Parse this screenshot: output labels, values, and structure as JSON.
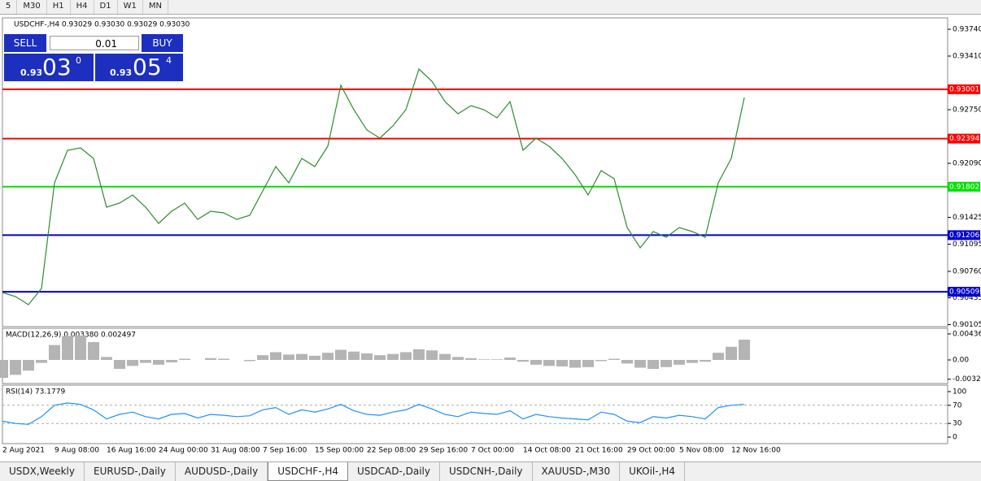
{
  "toolbar": [
    "5",
    "M30",
    "H1",
    "H4",
    "D1",
    "W1",
    "MN"
  ],
  "tabs": [
    "USDX,Weekly",
    "EURUSD-,Daily",
    "AUDUSD-,Daily",
    "USDCHF-,H4",
    "USDCAD-,Daily",
    "USDCNH-,Daily",
    "XAUUSD-,M30",
    "UKOil-,H4"
  ],
  "active_tab": "USDCHF-,H4",
  "trade_panel": {
    "sell": "SELL",
    "buy": "BUY",
    "lot": "0.01",
    "sell_price": {
      "prefix": "0.93",
      "big": "03",
      "point": "0"
    },
    "buy_price": {
      "prefix": "0.93",
      "big": "05",
      "point": "4"
    }
  },
  "chart_data": [
    {
      "type": "line",
      "title": "USDCHF-,H4  0.93029 0.93030 0.93029 0.93030",
      "color": "#2e8b2e",
      "values": [
        0.905,
        0.9045,
        0.9035,
        0.9055,
        0.9185,
        0.9225,
        0.9228,
        0.9215,
        0.9155,
        0.916,
        0.917,
        0.9155,
        0.9135,
        0.915,
        0.916,
        0.914,
        0.915,
        0.9148,
        0.914,
        0.9145,
        0.9175,
        0.9205,
        0.9185,
        0.9215,
        0.9205,
        0.923,
        0.9305,
        0.9275,
        0.925,
        0.924,
        0.9255,
        0.9275,
        0.9325,
        0.931,
        0.9285,
        0.927,
        0.928,
        0.9275,
        0.9265,
        0.9285,
        0.9225,
        0.924,
        0.923,
        0.9215,
        0.9195,
        0.917,
        0.92,
        0.919,
        0.913,
        0.9105,
        0.9125,
        0.9118,
        0.913,
        0.9125,
        0.9118,
        0.9185,
        0.9215,
        0.929
      ],
      "ylim": [
        0.9388,
        0.9008
      ],
      "yticks": [
        {
          "value": 0.9374,
          "label": "0.93740"
        },
        {
          "value": 0.9341,
          "label": "0.93410"
        },
        {
          "value": 0.9275,
          "label": "0.92750"
        },
        {
          "value": 0.9209,
          "label": "0.92090"
        },
        {
          "value": 0.91425,
          "label": "0.91425"
        },
        {
          "value": 0.91095,
          "label": "0.91095"
        },
        {
          "value": 0.9076,
          "label": "0.90760"
        },
        {
          "value": 0.90435,
          "label": "0.90435"
        },
        {
          "value": 0.90105,
          "label": "0.90105"
        }
      ],
      "levels": [
        {
          "value": 0.93001,
          "color": "#ff0000"
        },
        {
          "value": 0.92394,
          "color": "#ff0000"
        },
        {
          "value": 0.91802,
          "color": "#00e000"
        },
        {
          "value": 0.91206,
          "color": "#0000cc"
        },
        {
          "value": 0.90509,
          "color": "#0000cc"
        }
      ],
      "xtick_labels": [
        "2 Aug 2021",
        "9 Aug 08:00",
        "16 Aug 16:00",
        "24 Aug 00:00",
        "31 Aug 08:00",
        "7 Sep 16:00",
        "15 Sep 00:00",
        "22 Sep 08:00",
        "29 Sep 16:00",
        "7 Oct 00:00",
        "14 Oct 08:00",
        "21 Oct 16:00",
        "29 Oct 00:00",
        "5 Nov 08:00",
        "12 Nov 16:00"
      ]
    },
    {
      "type": "bar",
      "title": "MACD(12,26,9) 0.003380 0.002497",
      "color": "#b4b4b4",
      "values": [
        -0.003,
        -0.0025,
        -0.0018,
        -0.0005,
        0.0025,
        0.004,
        0.0041,
        0.003,
        0.0005,
        -0.0015,
        -0.001,
        -0.0005,
        -0.0008,
        -0.0004,
        0.0002,
        0,
        0.0003,
        0.0002,
        0,
        -0.0002,
        0.0008,
        0.0013,
        0.0009,
        0.001,
        0.0007,
        0.0012,
        0.0017,
        0.0014,
        0.0011,
        0.0008,
        0.001,
        0.0013,
        0.0018,
        0.0016,
        0.001,
        0.0005,
        0.0003,
        0.0001,
        0.0001,
        0.0004,
        -0.0003,
        -0.0008,
        -0.001,
        -0.0011,
        -0.0013,
        -0.0012,
        -0.0002,
        0.0002,
        -0.0006,
        -0.0013,
        -0.0015,
        -0.0012,
        -0.0008,
        -0.0005,
        -0.0003,
        0.0012,
        0.0022,
        0.0034
      ],
      "ylim": [
        0.00531,
        -0.00395
      ],
      "yticks": [
        0.00436,
        {
          "value": 0,
          "label": "0.00"
        },
        -0.00323
      ]
    },
    {
      "type": "line",
      "title": "RSI(14) 73.1779",
      "color": "#1e90ff",
      "values": [
        35,
        30,
        28,
        45,
        70,
        75,
        72,
        60,
        40,
        50,
        55,
        45,
        40,
        50,
        52,
        42,
        50,
        48,
        45,
        47,
        60,
        65,
        50,
        60,
        55,
        62,
        72,
        58,
        50,
        48,
        55,
        60,
        72,
        62,
        50,
        45,
        55,
        52,
        50,
        58,
        40,
        50,
        45,
        42,
        40,
        38,
        55,
        50,
        35,
        32,
        45,
        42,
        48,
        45,
        40,
        65,
        70,
        72
      ],
      "ylim": [
        114.3,
        -14.3
      ],
      "yticks": [
        100,
        70,
        30,
        0
      ],
      "levels": [
        {
          "value": 70,
          "color": "#aaaaaa"
        },
        {
          "value": 30,
          "color": "#aaaaaa"
        }
      ]
    }
  ]
}
